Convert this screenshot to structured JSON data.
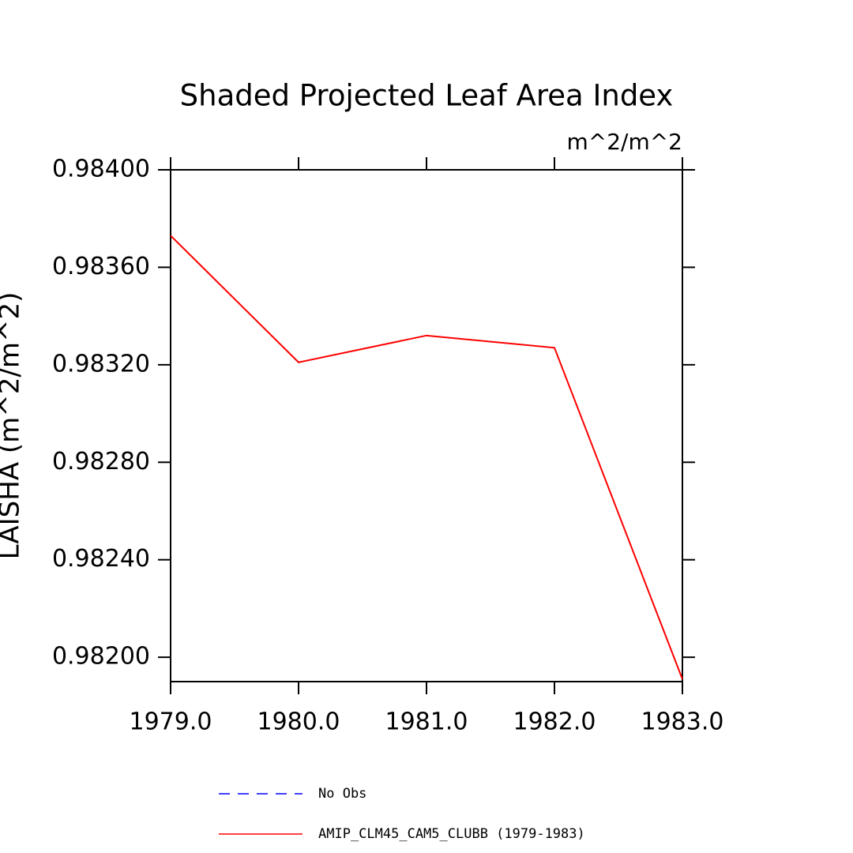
{
  "chart_data": {
    "type": "line",
    "title": "Shaded Projected Leaf Area Index",
    "units": "m^2/m^2",
    "y_label": "LAISHA  (m^2/m^2)",
    "x": [
      1979,
      1980,
      1981,
      1982,
      1983
    ],
    "series": [
      {
        "name": "No Obs",
        "color": "#0000ff",
        "dashed": true,
        "values": [
          null,
          null,
          null,
          null,
          null
        ]
      },
      {
        "name": "AMIP_CLM45_CAM5_CLUBB (1979-1983)",
        "color": "#ff0000",
        "dashed": false,
        "values": [
          0.98373,
          0.98321,
          0.98332,
          0.98327,
          0.98191
        ]
      }
    ],
    "xlim": [
      1979,
      1983
    ],
    "xticks": [
      {
        "value": 1979,
        "label": "1979.0"
      },
      {
        "value": 1980,
        "label": "1980.0"
      },
      {
        "value": 1981,
        "label": "1981.0"
      },
      {
        "value": 1982,
        "label": "1982.0"
      },
      {
        "value": 1983,
        "label": "1983.0"
      }
    ],
    "ylim": [
      0.9819,
      0.984
    ],
    "yticks": [
      {
        "value": 0.984,
        "label": "0.98400"
      },
      {
        "value": 0.9836,
        "label": "0.98360"
      },
      {
        "value": 0.9832,
        "label": "0.98320"
      },
      {
        "value": 0.9828,
        "label": "0.98280"
      },
      {
        "value": 0.9824,
        "label": "0.98240"
      },
      {
        "value": 0.982,
        "label": "0.98200"
      }
    ]
  }
}
